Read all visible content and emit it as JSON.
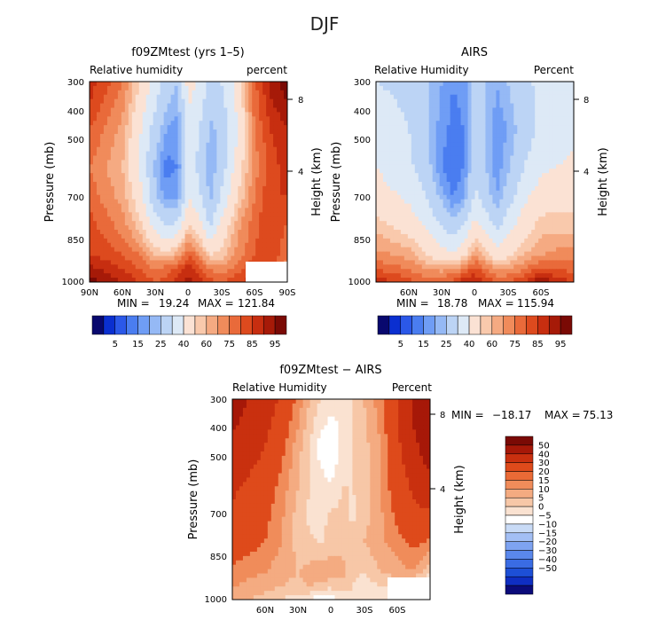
{
  "figure_title": "DJF",
  "colors": {
    "abs_levels": [
      "#08086e",
      "#0a2fd0",
      "#2b58e8",
      "#4a7df0",
      "#6f9df5",
      "#95b9f5",
      "#bcd4f5",
      "#dde9f6",
      "#fbe2d4",
      "#f9c9ac",
      "#f5aa82",
      "#f08b5b",
      "#e96a3a",
      "#dd4a1e",
      "#c72e10",
      "#a61a08",
      "#7a0a05"
    ],
    "diff_levels": [
      "#0b0b7a",
      "#0f2ec2",
      "#1d4fd6",
      "#3a6ce4",
      "#5a88ec",
      "#7ea3f1",
      "#a3bff4",
      "#c9dbf6",
      "#ffffff",
      "#fae2d1",
      "#f7c7a7",
      "#f4ab81",
      "#f08c5a",
      "#ea6a36",
      "#de4a1b",
      "#c9300f",
      "#a61808",
      "#7a0a05"
    ]
  },
  "colorbar_abs_labels": [
    "5",
    "15",
    "25",
    "40",
    "60",
    "75",
    "85",
    "95"
  ],
  "colorbar_diff_labels": [
    "50",
    "40",
    "30",
    "20",
    "15",
    "10",
    "5",
    "0",
    "−5",
    "−10",
    "−15",
    "−20",
    "−30",
    "−40",
    "−50"
  ],
  "chart_data": [
    {
      "type": "heatmap",
      "title": "f09ZMtest (yrs 1–5)",
      "label_left": "Relative humidity",
      "label_right": "percent",
      "ylabel": "Pressure (mb)",
      "ylabel_right": "Height (km)",
      "y_ticks": [
        "300",
        "400",
        "500",
        "700",
        "850",
        "1000"
      ],
      "y_ticks_right": [
        "8",
        "4"
      ],
      "x_ticks": [
        "90N",
        "60N",
        "30N",
        "0",
        "30S",
        "60S",
        "90S"
      ],
      "stats": {
        "min_label": "MIN =",
        "min": "19.24",
        "max_label": "MAX =",
        "max": "121.84"
      },
      "lat": [
        90,
        60,
        45,
        30,
        20,
        10,
        0,
        -10,
        -20,
        -30,
        -45,
        -60,
        -75,
        -90
      ],
      "pressure": [
        300,
        400,
        500,
        600,
        700,
        850,
        925,
        1000
      ],
      "rh": [
        [
          88,
          75,
          60,
          45,
          35,
          30,
          55,
          48,
          35,
          40,
          55,
          78,
          92,
          98
        ],
        [
          80,
          68,
          52,
          35,
          25,
          22,
          45,
          40,
          28,
          32,
          50,
          75,
          85,
          90
        ],
        [
          75,
          65,
          50,
          28,
          18,
          20,
          45,
          38,
          25,
          35,
          55,
          72,
          82,
          88
        ],
        [
          78,
          68,
          55,
          32,
          22,
          25,
          50,
          42,
          28,
          42,
          60,
          75,
          85,
          85
        ],
        [
          82,
          72,
          62,
          45,
          38,
          40,
          60,
          52,
          38,
          52,
          68,
          78,
          85,
          80
        ],
        [
          85,
          80,
          75,
          65,
          62,
          68,
          80,
          72,
          60,
          62,
          72,
          80,
          85,
          75
        ],
        [
          92,
          85,
          80,
          75,
          78,
          82,
          88,
          82,
          75,
          72,
          78,
          85,
          80,
          72
        ],
        [
          98,
          90,
          85,
          80,
          82,
          88,
          92,
          88,
          82,
          80,
          85,
          88,
          82,
          78
        ]
      ]
    },
    {
      "type": "heatmap",
      "title": "AIRS",
      "label_left": "Relative Humidity",
      "label_right": "Percent",
      "ylabel": "Pressure (mb)",
      "ylabel_right": "Height (km)",
      "y_ticks": [
        "300",
        "400",
        "500",
        "700",
        "850",
        "1000"
      ],
      "y_ticks_right": [
        "8",
        "4"
      ],
      "x_ticks": [
        "60N",
        "30N",
        "0",
        "30S",
        "60S"
      ],
      "stats": {
        "min_label": "MIN =",
        "min": "18.78",
        "max_label": "MAX =",
        "max": "115.94"
      },
      "lat": [
        90,
        60,
        45,
        30,
        20,
        10,
        0,
        -10,
        -20,
        -30,
        -45,
        -60,
        -75,
        -90
      ],
      "pressure": [
        300,
        400,
        500,
        600,
        700,
        850,
        925,
        1000
      ],
      "rh": [
        [
          40,
          38,
          32,
          25,
          20,
          22,
          35,
          30,
          25,
          30,
          38,
          42,
          45,
          50
        ],
        [
          45,
          40,
          32,
          22,
          18,
          20,
          35,
          30,
          22,
          25,
          35,
          42,
          45,
          48
        ],
        [
          50,
          42,
          35,
          20,
          15,
          20,
          38,
          30,
          22,
          28,
          40,
          48,
          50,
          52
        ],
        [
          55,
          48,
          40,
          28,
          20,
          25,
          42,
          35,
          25,
          35,
          48,
          55,
          58,
          58
        ],
        [
          62,
          55,
          48,
          38,
          32,
          38,
          52,
          45,
          35,
          45,
          55,
          62,
          62,
          62
        ],
        [
          72,
          68,
          60,
          55,
          52,
          58,
          70,
          62,
          55,
          58,
          65,
          70,
          72,
          72
        ],
        [
          80,
          75,
          70,
          68,
          70,
          75,
          82,
          75,
          70,
          70,
          75,
          82,
          80,
          78
        ],
        [
          88,
          82,
          78,
          80,
          82,
          88,
          90,
          85,
          80,
          80,
          85,
          95,
          88,
          85
        ]
      ]
    },
    {
      "type": "heatmap",
      "title": "f09ZMtest − AIRS",
      "label_left": "Relative Humidity",
      "label_right": "Percent",
      "ylabel": "Pressure (mb)",
      "ylabel_right": "Height (km)",
      "y_ticks": [
        "300",
        "400",
        "500",
        "700",
        "850",
        "1000"
      ],
      "y_ticks_right": [
        "8",
        "4"
      ],
      "x_ticks": [
        "60N",
        "30N",
        "0",
        "30S",
        "60S"
      ],
      "stats": {
        "min_label": "MIN =",
        "min": "−18.17",
        "max_label": "MAX =",
        "max": "75.13"
      },
      "lat": [
        90,
        60,
        45,
        30,
        20,
        10,
        0,
        -10,
        -20,
        -30,
        -45,
        -60,
        -75,
        -90
      ],
      "pressure": [
        300,
        400,
        500,
        600,
        700,
        850,
        925,
        1000
      ],
      "diff": [
        [
          45,
          35,
          28,
          18,
          10,
          5,
          2,
          0,
          5,
          10,
          18,
          30,
          42,
          50
        ],
        [
          38,
          30,
          22,
          12,
          5,
          -2,
          -5,
          2,
          5,
          8,
          15,
          28,
          38,
          45
        ],
        [
          32,
          25,
          18,
          10,
          5,
          2,
          0,
          5,
          5,
          8,
          15,
          25,
          32,
          38
        ],
        [
          28,
          22,
          16,
          8,
          4,
          2,
          6,
          6,
          4,
          8,
          14,
          22,
          28,
          28
        ],
        [
          25,
          20,
          15,
          8,
          6,
          4,
          8,
          8,
          6,
          10,
          14,
          18,
          22,
          20
        ],
        [
          18,
          15,
          12,
          10,
          12,
          15,
          12,
          12,
          6,
          5,
          10,
          12,
          15,
          5
        ],
        [
          15,
          12,
          10,
          8,
          10,
          8,
          6,
          8,
          5,
          2,
          5,
          5,
          0,
          -8
        ],
        [
          12,
          8,
          5,
          2,
          0,
          -5,
          -2,
          0,
          2,
          0,
          2,
          -5,
          -8,
          -12
        ]
      ]
    }
  ]
}
